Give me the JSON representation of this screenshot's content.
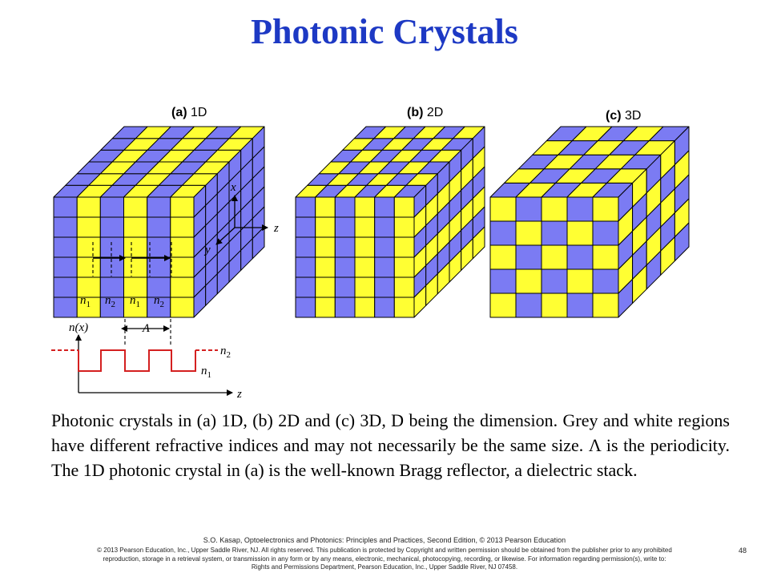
{
  "slide": {
    "title": "Photonic Crystals",
    "caption": "Photonic crystals in (a) 1D, (b) 2D and (c) 3D, D being the dimension. Grey and white regions have different refractive indices and may not necessarily be the same size. Λ is the periodicity. The 1D photonic crystal in (a) is the well-known Bragg reflector, a dielectric stack.",
    "credit_line1": "S.O. Kasap, Optoelectronics and Photonics: Principles and Practices, Second Edition, © 2013 Pearson Education",
    "credit_line2": "© 2013 Pearson Education, Inc., Upper Saddle River, NJ. All rights reserved. This publication is protected by Copyright and written permission should be obtained from the publisher prior to any prohibited",
    "credit_line3": "reproduction, storage in a retrieval system, or transmission in any form or by any means, electronic, mechanical, photocopying, recording, or likewise. For information regarding permission(s), write to:",
    "credit_line4": "Rights and Permissions Department, Pearson Education, Inc., Upper Saddle River, NJ 07458.",
    "page_number": "48"
  },
  "figure": {
    "colors": {
      "blue": "#7b7bf3",
      "yellow": "#ffff33",
      "red": "#d42020",
      "edge": "#000000"
    },
    "panel_a": {
      "prefix": "(a)",
      "label": "1D"
    },
    "panel_b": {
      "prefix": "(b)",
      "label": "2D"
    },
    "panel_c": {
      "prefix": "(c)",
      "label": "3D"
    },
    "axes": {
      "x": "x",
      "y": "y",
      "z": "z"
    },
    "layers": {
      "n1": "n",
      "n2": "n",
      "sub1": "1",
      "sub2": "2"
    },
    "period_symbol": "Λ",
    "profile": {
      "ylabel": "n(x)",
      "xlabel": "z",
      "n2": "n",
      "n1": "n",
      "sub2": "2",
      "sub1": "1"
    }
  }
}
